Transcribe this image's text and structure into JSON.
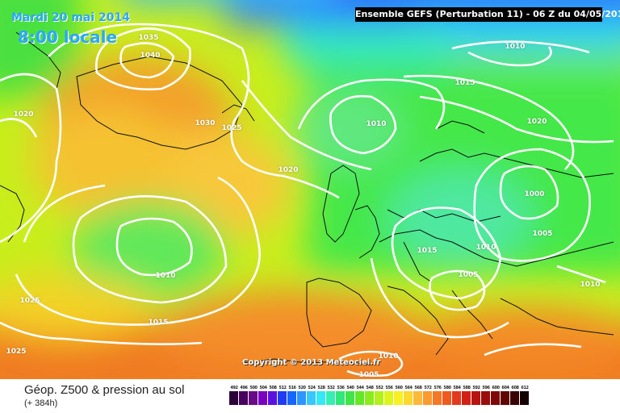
{
  "header": {
    "date": "Mardi 20 mai 2014",
    "time": "8:00 locale",
    "model": "Ensemble GEFS (Perturbation 11)  -  06 Z du 04/05/2014"
  },
  "isobars": [
    "1035",
    "1040",
    "1030",
    "1025",
    "1020",
    "1020",
    "1010",
    "1010",
    "1015",
    "1020",
    "1000",
    "1005",
    "1010",
    "1015",
    "1005",
    "1010",
    "1010",
    "1025",
    "1015",
    "1025",
    "1010",
    "1005"
  ],
  "copyright": "Copyright © 2013 Meteociel.fr",
  "footer": {
    "title": "Géop. Z500 & pression au sol",
    "subtitle": "(+ 384h)"
  },
  "legend": {
    "ticks": [
      "492",
      "496",
      "500",
      "504",
      "508",
      "512",
      "516",
      "520",
      "524",
      "528",
      "532",
      "536",
      "540",
      "544",
      "548",
      "552",
      "556",
      "560",
      "564",
      "568",
      "572",
      "576",
      "580",
      "584",
      "588",
      "592",
      "596",
      "600",
      "604",
      "608",
      "612"
    ],
    "colors": [
      "#2c0138",
      "#4a035c",
      "#6a0a86",
      "#7a00c2",
      "#5a10e0",
      "#1f3cf2",
      "#1667ff",
      "#2d95ff",
      "#38c8ff",
      "#35e8f5",
      "#35f0b2",
      "#30e87a",
      "#40e448",
      "#64e826",
      "#8aec1a",
      "#b4f01c",
      "#dcf51e",
      "#f6f124",
      "#fcd830",
      "#fdba3a",
      "#fb9a30",
      "#f67824",
      "#ef5a1f",
      "#e4391d",
      "#d22016",
      "#b8140f",
      "#9a0d0b",
      "#7e0808",
      "#5e0404",
      "#3a0202",
      "#140000",
      "#000000",
      "#000000",
      "#000000",
      "#000000",
      "#000000",
      "#000000",
      "#000000",
      "#000000"
    ]
  }
}
